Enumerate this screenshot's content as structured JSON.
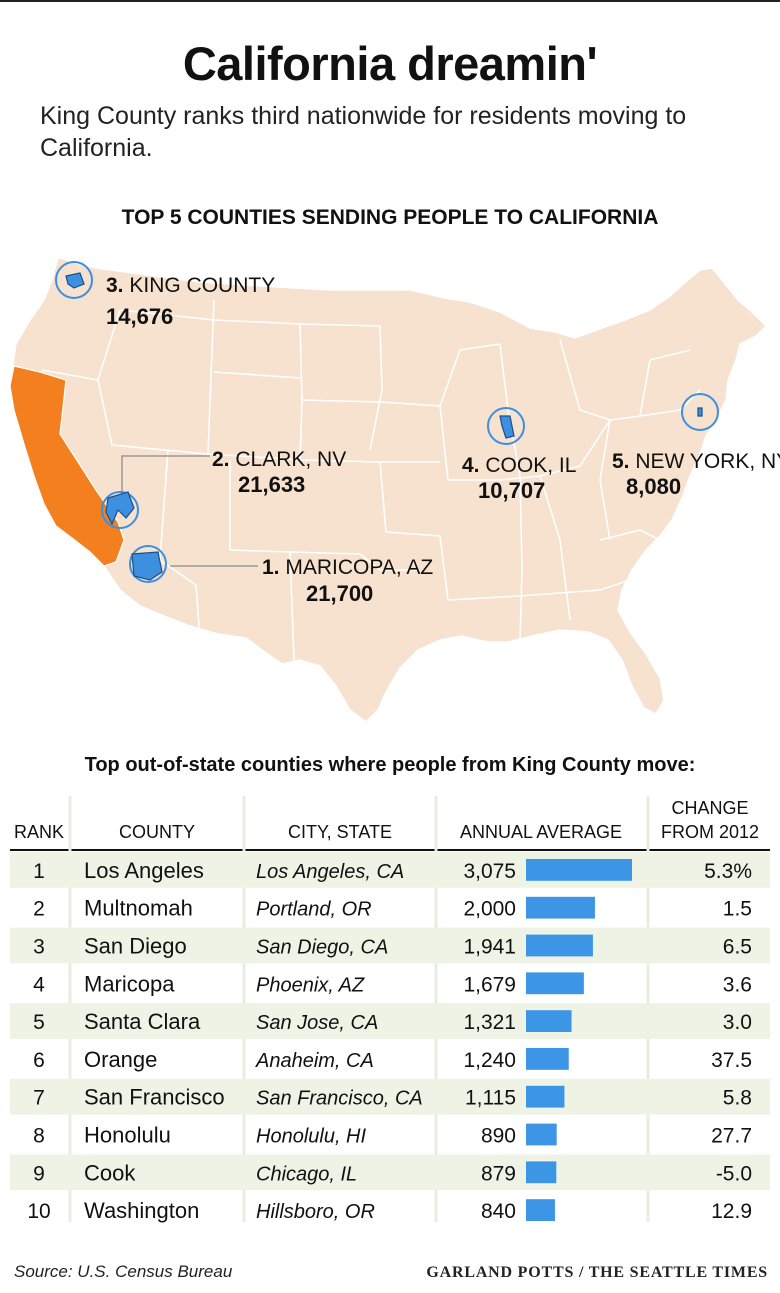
{
  "title": "California dreamin'",
  "subtitle": "King County ranks third nationwide for residents moving to California.",
  "map": {
    "title": "TOP 5 COUNTIES SENDING PEOPLE TO CALIFORNIA",
    "highlight_color": "#f47f1f",
    "land_color": "#f7e1cf",
    "county_color": "#3d8fe0",
    "counties": [
      {
        "rank": "3.",
        "name": "KING COUNTY",
        "value": "14,676"
      },
      {
        "rank": "2.",
        "name": "CLARK, NV",
        "value": "21,633"
      },
      {
        "rank": "1.",
        "name": "MARICOPA, AZ",
        "value": "21,700"
      },
      {
        "rank": "4.",
        "name": "COOK, IL",
        "value": "10,707"
      },
      {
        "rank": "5.",
        "name": "NEW YORK, NY",
        "value": "8,080"
      }
    ]
  },
  "chart_data": {
    "type": "table",
    "title": "Top out-of-state counties where people from King County move:",
    "columns": [
      "RANK",
      "COUNTY",
      "CITY, STATE",
      "ANNUAL AVERAGE",
      "CHANGE FROM 2012"
    ],
    "bar_color": "#3d95e6",
    "stripe_color": "#eef3e6",
    "rows": [
      {
        "rank": "1",
        "county": "Los Angeles",
        "city": "Los Angeles, CA",
        "label": "3,075",
        "value": 3075,
        "change": "5.3%"
      },
      {
        "rank": "2",
        "county": "Multnomah",
        "city": "Portland, OR",
        "label": "2,000",
        "value": 2000,
        "change": "1.5"
      },
      {
        "rank": "3",
        "county": "San Diego",
        "city": "San Diego, CA",
        "label": "1,941",
        "value": 1941,
        "change": "6.5"
      },
      {
        "rank": "4",
        "county": "Maricopa",
        "city": "Phoenix, AZ",
        "label": "1,679",
        "value": 1679,
        "change": "3.6"
      },
      {
        "rank": "5",
        "county": "Santa Clara",
        "city": "San Jose, CA",
        "label": "1,321",
        "value": 1321,
        "change": "3.0"
      },
      {
        "rank": "6",
        "county": "Orange",
        "city": "Anaheim, CA",
        "label": "1,240",
        "value": 1240,
        "change": "37.5"
      },
      {
        "rank": "7",
        "county": "San Francisco",
        "city": "San Francisco, CA",
        "label": "1,115",
        "value": 1115,
        "change": "5.8"
      },
      {
        "rank": "8",
        "county": "Honolulu",
        "city": "Honolulu, HI",
        "label": "890",
        "value": 890,
        "change": "27.7"
      },
      {
        "rank": "9",
        "county": "Cook",
        "city": "Chicago, IL",
        "label": "879",
        "value": 879,
        "change": "-5.0"
      },
      {
        "rank": "10",
        "county": "Washington",
        "city": "Hillsboro, OR",
        "label": "840",
        "value": 840,
        "change": "12.9"
      }
    ]
  },
  "source": "Source: U.S. Census Bureau",
  "credit": "GARLAND POTTS / THE SEATTLE TIMES"
}
